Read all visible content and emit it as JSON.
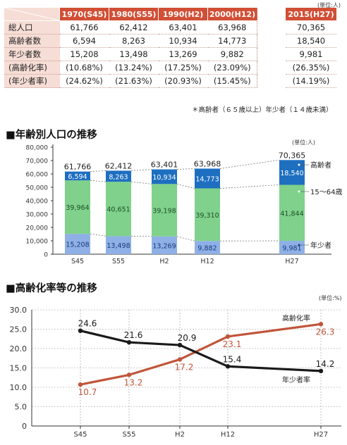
{
  "table": {
    "unit": "(単位:人)",
    "headers": [
      "1970(S45)",
      "1980(S55)",
      "1990(H2)",
      "2000(H12)",
      "2015(H27)"
    ],
    "rows": [
      {
        "label": "総人口",
        "values": [
          "61,766",
          "62,412",
          "63,401",
          "63,968",
          "70,365"
        ]
      },
      {
        "label": "高齢者数",
        "values": [
          "6,594",
          "8,263",
          "10,934",
          "14,773",
          "18,540"
        ]
      },
      {
        "label": "年少者数",
        "values": [
          "15,208",
          "13,498",
          "13,269",
          "9,882",
          "9,981"
        ]
      },
      {
        "label": "(高齢化率)",
        "values": [
          "(10.68%)",
          "(13.24%)",
          "(17.25%)",
          "(23.09%)",
          "(26.35%)"
        ]
      },
      {
        "label": "(年少者率)",
        "values": [
          "(24.62%)",
          "(21.63%)",
          "(20.93%)",
          "(15.45%)",
          "(14.19%)"
        ]
      }
    ],
    "note": "＊高齢者（６５歳以上）年少者（１４歳未満）"
  },
  "section1_title": "■年齢別人口の推移",
  "section2_title": "■高齢化率等の推移",
  "colors": {
    "header_red": "#d14f35",
    "row_pink": "#f6ddd5",
    "elderly": "#1e6fc0",
    "working": "#7fd18b",
    "young": "#8eb0e6",
    "line_red": "#c0553a",
    "line_black": "#1a1a1a"
  },
  "chart_data": [
    {
      "type": "bar",
      "stacked": true,
      "unit": "(単位:人)",
      "categories": [
        "S45",
        "S55",
        "H2",
        "H12",
        "H27"
      ],
      "totals": [
        61766,
        62412,
        63401,
        63968,
        70365
      ],
      "series": [
        {
          "name": "年少者",
          "values": [
            15208,
            13498,
            13269,
            9882,
            9981
          ]
        },
        {
          "name": "15～64歳",
          "values": [
            39964,
            40651,
            39198,
            39310,
            41844
          ]
        },
        {
          "name": "高齢者",
          "values": [
            6594,
            8263,
            10934,
            14773,
            18540
          ]
        }
      ],
      "ylim": [
        0,
        80000
      ],
      "yticks": [
        "0",
        "10,000",
        "20,000",
        "30,000",
        "40,000",
        "50,000",
        "60,000",
        "70,000",
        "80,000"
      ],
      "grid": false
    },
    {
      "type": "line",
      "unit": "(単位:%)",
      "categories": [
        "S45",
        "S55",
        "H2",
        "H12",
        "H27"
      ],
      "series": [
        {
          "name": "高齢化率",
          "values": [
            10.7,
            13.2,
            17.2,
            23.1,
            26.3
          ]
        },
        {
          "name": "年少者率",
          "values": [
            24.6,
            21.6,
            20.9,
            15.4,
            14.2
          ]
        }
      ],
      "ylim": [
        0,
        30
      ],
      "yticks": [
        "0",
        "5.0",
        "10.0",
        "15.0",
        "20.0",
        "25.0",
        "30.0"
      ],
      "grid": true
    }
  ]
}
